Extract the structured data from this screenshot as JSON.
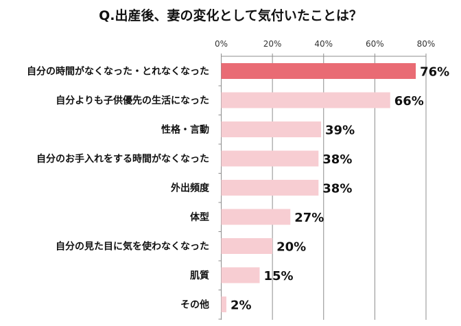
{
  "chart_data": {
    "type": "bar",
    "orientation": "horizontal",
    "title": "Q.出産後、妻の変化として気付いたことは？",
    "categories": [
      "自分の時間がなくなった・とれなくなった",
      "自分よりも子供優先の生活になった",
      "性格・言動",
      "自分のお手入れをする時間がなくなった",
      "外出頻度",
      "体型",
      "自分の見た目に気を使わなくなった",
      "肌質",
      "その他"
    ],
    "values": [
      76,
      66,
      39,
      38,
      38,
      27,
      20,
      15,
      2
    ],
    "data_labels": [
      "76%",
      "66%",
      "39%",
      "38%",
      "38%",
      "27%",
      "20%",
      "15%",
      "2%"
    ],
    "xlim": [
      0,
      80
    ],
    "x_ticks": [
      "0%",
      "20%",
      "40%",
      "60%",
      "80%"
    ],
    "axis_position": "top",
    "grid": "vertical",
    "colors": {
      "highlight": "#E96B74",
      "default": "#F7CDD2",
      "grid": "#8c8c8c"
    }
  }
}
